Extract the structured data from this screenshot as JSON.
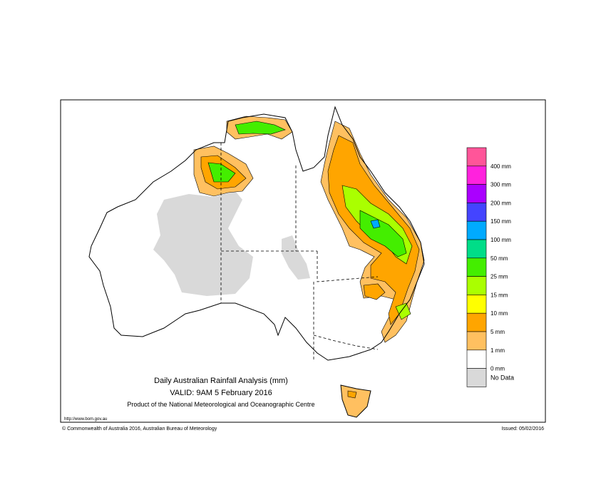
{
  "header": {
    "title": "Daily Australian Rainfall Analysis (mm)",
    "valid": "VALID: 9AM  5 February 2016",
    "product": "Product of the National Meteorological and Oceanographic Centre"
  },
  "footer": {
    "url": "http://www.bom.gov.au",
    "copyright": "© Commonwealth of Australia 2016, Australian Bureau of Meteorology",
    "issued": "Issued: 05/02/2016"
  },
  "legend": {
    "boxes": [
      {
        "color": "#ff5599"
      },
      {
        "color": "#ff22dd"
      },
      {
        "color": "#aa00ff"
      },
      {
        "color": "#4444ff"
      },
      {
        "color": "#00aaff"
      },
      {
        "color": "#00dd88"
      },
      {
        "color": "#44ee00"
      },
      {
        "color": "#aaff00"
      },
      {
        "color": "#ffff00"
      },
      {
        "color": "#ffa500"
      },
      {
        "color": "#ffc060"
      },
      {
        "color": "#ffffff"
      },
      {
        "color": "#d9d9d9"
      }
    ],
    "labels": [
      "400 mm",
      "300 mm",
      "200 mm",
      "150 mm",
      "100 mm",
      "50 mm",
      "25 mm",
      "15 mm",
      "10 mm",
      "5 mm",
      "1 mm",
      "0 mm"
    ],
    "no_data": "No Data"
  }
}
